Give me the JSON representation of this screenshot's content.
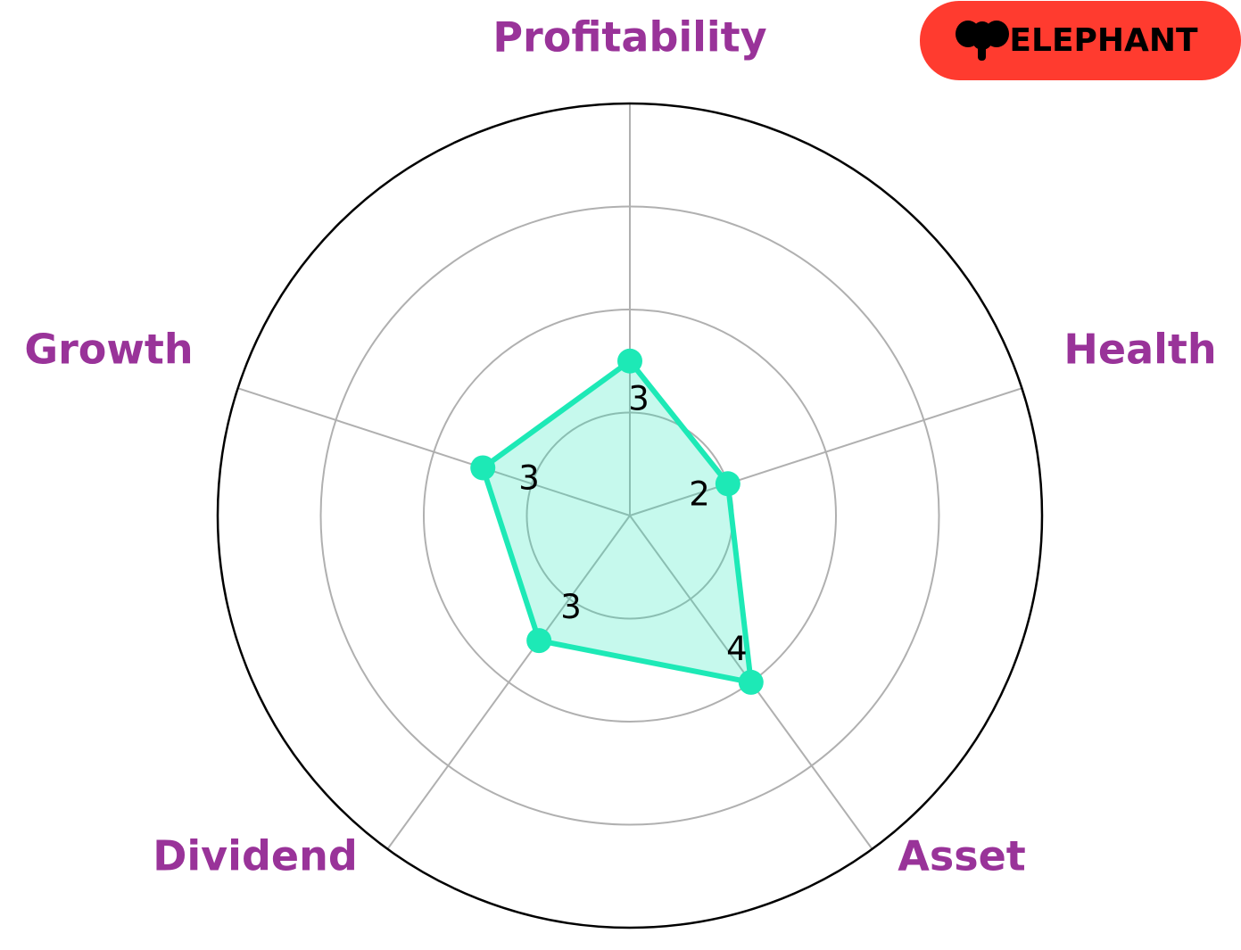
{
  "chart_data": {
    "type": "radar",
    "categories": [
      "Profitability",
      "Health",
      "Asset",
      "Dividend",
      "Growth"
    ],
    "values": [
      3,
      2,
      4,
      3,
      3
    ],
    "color": "#1de9b6",
    "label_color": "#993399",
    "ylim": [
      0,
      8
    ],
    "yticks": [
      2,
      4,
      6
    ],
    "grid": true
  },
  "badge": {
    "text": "ELEPHANT"
  }
}
